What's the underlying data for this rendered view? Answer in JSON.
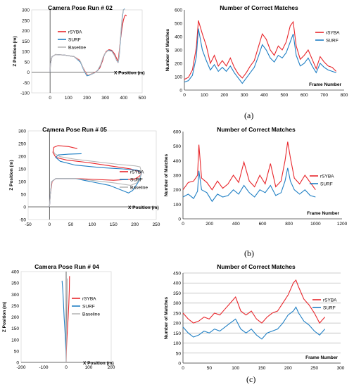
{
  "colors": {
    "rsyba": "#e8262b",
    "surf": "#1f7fc4",
    "baseline": "#b8b8b8",
    "axis": "#404040",
    "grid": "#bdbdbd"
  },
  "captions": {
    "a": "(a)",
    "b": "(b)",
    "c": "(c)"
  },
  "chart_data": [
    {
      "type": "line",
      "title": "Camera Pose Run # 02",
      "xlabel": "X Position (m)",
      "ylabel": "Z Position (m)",
      "xlim": [
        -100,
        500
      ],
      "ylim": [
        -100,
        300
      ],
      "xticks": [
        "0",
        "100",
        "200",
        "300",
        "400",
        "500"
      ],
      "yticks": [
        "-100",
        "-50",
        "0",
        "50",
        "100",
        "150",
        "200",
        "250",
        "300"
      ],
      "series": [
        {
          "name": "rSYBA",
          "x": [
            0,
            2,
            10,
            30,
            80,
            130,
            160,
            180,
            195,
            205,
            215,
            235,
            255,
            270,
            285,
            295,
            305,
            320,
            335,
            350,
            362,
            368,
            372,
            380,
            390,
            398,
            405,
            410,
            415
          ],
          "y": [
            0,
            40,
            74,
            85,
            82,
            75,
            58,
            20,
            -5,
            -15,
            -12,
            -5,
            5,
            20,
            55,
            85,
            100,
            108,
            105,
            88,
            65,
            50,
            70,
            140,
            210,
            250,
            270,
            275,
            270
          ]
        },
        {
          "name": "SURF",
          "x": [
            0,
            2,
            10,
            30,
            80,
            130,
            165,
            185,
            200,
            210,
            225,
            245,
            260,
            275,
            288,
            300,
            315,
            335,
            350,
            362,
            370,
            375,
            380,
            386,
            392,
            398,
            405
          ],
          "y": [
            0,
            40,
            74,
            85,
            82,
            75,
            48,
            5,
            -18,
            -16,
            -10,
            -2,
            10,
            35,
            70,
            92,
            105,
            102,
            80,
            55,
            48,
            75,
            130,
            200,
            260,
            300,
            305
          ]
        },
        {
          "name": "Baseline",
          "x": [
            0,
            2,
            10,
            30,
            80,
            130,
            165,
            185,
            200,
            210,
            225,
            245,
            260,
            275,
            288,
            300,
            315,
            335,
            350,
            362,
            370,
            375,
            380,
            386,
            392,
            398,
            405
          ],
          "y": [
            0,
            40,
            74,
            85,
            82,
            75,
            52,
            8,
            -14,
            -14,
            -9,
            -2,
            12,
            37,
            72,
            93,
            104,
            100,
            79,
            56,
            50,
            78,
            140,
            210,
            270,
            300,
            302
          ]
        }
      ],
      "legend": "center-left"
    },
    {
      "type": "line",
      "title": "Number of Correct Matches",
      "xlabel": "Frame Number",
      "ylabel": "Number of Matches",
      "xlim": [
        0,
        800
      ],
      "ylim": [
        0,
        600
      ],
      "xticks": [
        "0",
        "100",
        "200",
        "300",
        "400",
        "500",
        "600",
        "700",
        "800"
      ],
      "yticks": [
        "0",
        "100",
        "200",
        "300",
        "400",
        "500",
        "600"
      ],
      "series": [
        {
          "name": "rSYBA",
          "x": [
            0,
            20,
            40,
            60,
            70,
            90,
            110,
            130,
            150,
            170,
            190,
            210,
            230,
            250,
            270,
            290,
            310,
            330,
            350,
            370,
            390,
            410,
            430,
            450,
            470,
            490,
            510,
            530,
            545,
            560,
            580,
            600,
            620,
            640,
            660,
            680,
            700,
            720,
            740,
            760
          ],
          "y": [
            80,
            95,
            150,
            320,
            520,
            420,
            330,
            200,
            260,
            180,
            220,
            180,
            240,
            170,
            120,
            90,
            130,
            180,
            220,
            320,
            420,
            380,
            300,
            260,
            330,
            300,
            360,
            480,
            510,
            330,
            230,
            260,
            300,
            230,
            160,
            250,
            210,
            180,
            170,
            140
          ]
        },
        {
          "name": "SURF",
          "x": [
            0,
            20,
            40,
            60,
            70,
            90,
            110,
            130,
            150,
            170,
            190,
            210,
            230,
            250,
            270,
            290,
            310,
            330,
            350,
            370,
            390,
            410,
            430,
            450,
            470,
            490,
            510,
            530,
            545,
            560,
            580,
            600,
            620,
            640,
            660,
            680,
            700,
            720,
            740,
            760
          ],
          "y": [
            60,
            70,
            110,
            250,
            460,
            300,
            220,
            150,
            190,
            140,
            170,
            140,
            180,
            130,
            90,
            50,
            90,
            130,
            170,
            250,
            340,
            300,
            240,
            210,
            260,
            240,
            280,
            360,
            420,
            260,
            180,
            200,
            240,
            180,
            130,
            200,
            170,
            150,
            140,
            130
          ]
        }
      ],
      "legend": "right"
    },
    {
      "type": "line",
      "title": "Camera Pose Run # 05",
      "xlabel": "X Position (m)",
      "ylabel": "Z Position (m)",
      "xlim": [
        -50,
        250
      ],
      "ylim": [
        -50,
        300
      ],
      "xticks": [
        "-50",
        "0",
        "50",
        "100",
        "150",
        "200",
        "250"
      ],
      "yticks": [
        "-50",
        "0",
        "50",
        "100",
        "150",
        "200",
        "250",
        "300"
      ],
      "series": [
        {
          "name": "rSYBA",
          "x": [
            0,
            2,
            6,
            15,
            60,
            150,
            200,
            210,
            215,
            210,
            190,
            150,
            90,
            40,
            15,
            8,
            10,
            20,
            45,
            65
          ],
          "y": [
            0,
            50,
            100,
            112,
            112,
            105,
            110,
            120,
            130,
            140,
            150,
            160,
            175,
            185,
            195,
            215,
            235,
            242,
            238,
            230
          ]
        },
        {
          "name": "SURF",
          "x": [
            0,
            2,
            5,
            15,
            60,
            140,
            175,
            185,
            195,
            205,
            212,
            215,
            205,
            170,
            120,
            60,
            25,
            15,
            20,
            45,
            75
          ],
          "y": [
            0,
            50,
            100,
            112,
            112,
            85,
            62,
            55,
            65,
            90,
            110,
            135,
            145,
            150,
            155,
            165,
            180,
            195,
            205,
            208,
            210
          ]
        },
        {
          "name": "Baseline",
          "x": [
            0,
            2,
            5,
            15,
            60,
            150,
            190,
            205,
            212,
            215,
            212,
            200,
            160,
            110,
            60,
            25,
            12,
            10
          ],
          "y": [
            0,
            50,
            100,
            112,
            112,
            95,
            85,
            95,
            115,
            140,
            158,
            162,
            168,
            178,
            188,
            198,
            210,
            218
          ]
        }
      ],
      "legend": "right"
    },
    {
      "type": "line",
      "title": "Number of Correct Matches",
      "xlabel": "Frame Number",
      "ylabel": "Number of Matches",
      "xlim": [
        0,
        1200
      ],
      "ylim": [
        0,
        600
      ],
      "xticks": [
        "0",
        "200",
        "400",
        "600",
        "800",
        "1000",
        "1200"
      ],
      "yticks": [
        "0",
        "100",
        "200",
        "300",
        "400",
        "500",
        "600"
      ],
      "series": [
        {
          "name": "rSYBA",
          "x": [
            0,
            40,
            80,
            110,
            120,
            140,
            180,
            220,
            260,
            300,
            340,
            380,
            420,
            460,
            500,
            540,
            580,
            620,
            660,
            700,
            740,
            770,
            790,
            810,
            840,
            880,
            920,
            960,
            1000
          ],
          "y": [
            200,
            250,
            260,
            300,
            510,
            280,
            250,
            200,
            260,
            210,
            240,
            300,
            250,
            390,
            260,
            220,
            300,
            240,
            380,
            220,
            260,
            400,
            530,
            420,
            280,
            240,
            300,
            250,
            200
          ]
        },
        {
          "name": "SURF",
          "x": [
            0,
            40,
            80,
            110,
            120,
            140,
            180,
            220,
            260,
            300,
            340,
            380,
            420,
            460,
            500,
            540,
            580,
            620,
            660,
            700,
            740,
            770,
            790,
            810,
            840,
            880,
            920,
            960,
            1000
          ],
          "y": [
            150,
            170,
            140,
            190,
            330,
            200,
            180,
            120,
            170,
            150,
            160,
            200,
            170,
            230,
            180,
            150,
            200,
            180,
            230,
            160,
            180,
            260,
            350,
            260,
            200,
            170,
            200,
            160,
            150
          ]
        }
      ],
      "legend": "right"
    },
    {
      "type": "line",
      "title": "Camera Pose Run # 04",
      "xlabel": "X Position (m)",
      "ylabel": "Z Position (m)",
      "xlim": [
        -200,
        200
      ],
      "ylim": [
        0,
        400
      ],
      "xticks": [
        "-200",
        "-100",
        "0",
        "100",
        "200"
      ],
      "yticks": [
        "0",
        "50",
        "100",
        "150",
        "200",
        "250",
        "300",
        "350",
        "400"
      ],
      "series": [
        {
          "name": "rSYBA",
          "x": [
            0,
            1,
            3,
            6,
            9,
            12,
            14,
            15
          ],
          "y": [
            0,
            50,
            100,
            150,
            200,
            260,
            320,
            380
          ]
        },
        {
          "name": "SURF",
          "x": [
            0,
            -1,
            -3,
            -6,
            -9,
            -12,
            -15,
            -18
          ],
          "y": [
            0,
            50,
            100,
            150,
            200,
            260,
            320,
            360
          ]
        },
        {
          "name": "Baseline",
          "x": [
            0,
            0,
            1,
            2,
            3,
            4,
            5,
            5
          ],
          "y": [
            0,
            50,
            100,
            150,
            200,
            260,
            320,
            370
          ]
        }
      ],
      "legend": "right"
    },
    {
      "type": "line",
      "title": "Number of Correct Matches",
      "xlabel": "Frame Number",
      "ylabel": "Number of Matches",
      "xlim": [
        0,
        300
      ],
      "ylim": [
        0,
        450
      ],
      "xticks": [
        "0",
        "50",
        "100",
        "150",
        "200",
        "250",
        "300"
      ],
      "yticks": [
        "0",
        "50",
        "100",
        "150",
        "200",
        "250",
        "300",
        "350",
        "400",
        "450"
      ],
      "grid": true,
      "series": [
        {
          "name": "rSYBA",
          "x": [
            0,
            10,
            20,
            30,
            40,
            50,
            60,
            70,
            80,
            90,
            100,
            110,
            120,
            130,
            140,
            150,
            160,
            170,
            180,
            190,
            200,
            210,
            215,
            220,
            230,
            240,
            250,
            260,
            270
          ],
          "y": [
            250,
            220,
            200,
            210,
            230,
            220,
            250,
            240,
            270,
            300,
            330,
            260,
            240,
            260,
            220,
            200,
            230,
            250,
            260,
            300,
            340,
            400,
            415,
            380,
            320,
            290,
            250,
            200,
            230
          ]
        },
        {
          "name": "SURF",
          "x": [
            0,
            10,
            20,
            30,
            40,
            50,
            60,
            70,
            80,
            90,
            100,
            110,
            120,
            130,
            140,
            150,
            160,
            170,
            180,
            190,
            200,
            210,
            215,
            220,
            230,
            240,
            250,
            260,
            270
          ],
          "y": [
            180,
            150,
            130,
            140,
            160,
            150,
            170,
            160,
            180,
            200,
            220,
            170,
            150,
            170,
            140,
            120,
            150,
            160,
            170,
            200,
            240,
            260,
            280,
            250,
            210,
            190,
            160,
            140,
            170
          ]
        }
      ],
      "legend": "center-right"
    }
  ]
}
